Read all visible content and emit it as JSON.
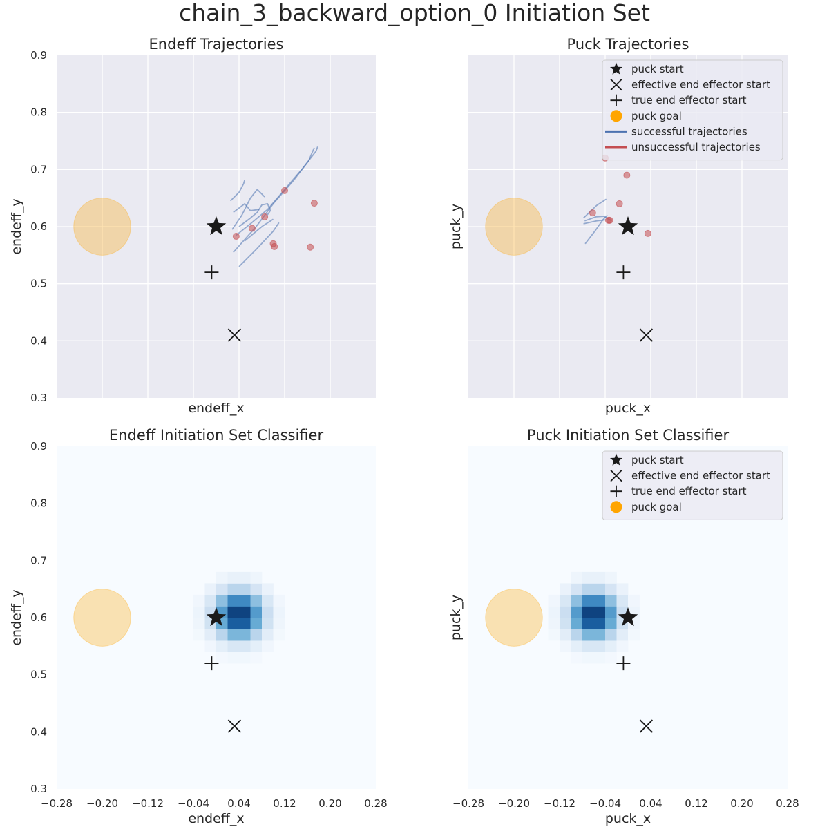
{
  "suptitle": "chain_3_backward_option_0 Initiation Set",
  "colors": {
    "panel_bg": "#eaeaf2",
    "grid": "#ffffff",
    "goal": "#ffa500",
    "success": "#4c72b0",
    "failure": "#c44e52",
    "marker": "#1a1a1a",
    "heat_low": "#f7fbff",
    "heat_high": "#08306b"
  },
  "legend_labels": {
    "puck_start": "puck start",
    "eff_start": "effective end effector start",
    "true_start": "true end effector start",
    "goal": "puck goal",
    "success": "successful trajectories",
    "failure": "unsuccessful trajectories"
  },
  "icons": {
    "puck_start": "star-marker",
    "eff_start": "x-marker",
    "true_start": "plus-marker",
    "goal": "filled-circle"
  },
  "panels": [
    {
      "title": "Endeff Trajectories",
      "xlabel": "endeff_x",
      "ylabel": "endeff_y"
    },
    {
      "title": "Puck Trajectories",
      "xlabel": "puck_x",
      "ylabel": "puck_y"
    },
    {
      "title": "Endeff Initiation Set Classifier",
      "xlabel": "endeff_x",
      "ylabel": "endeff_y"
    },
    {
      "title": "Puck Initiation Set Classifier",
      "xlabel": "puck_x",
      "ylabel": "puck_y"
    }
  ],
  "chart_data": [
    {
      "type": "line",
      "title": "Endeff Trajectories",
      "xlabel": "endeff_x",
      "ylabel": "endeff_y",
      "xlim": [
        -0.28,
        0.28
      ],
      "ylim": [
        0.3,
        0.9
      ],
      "xticks": [],
      "yticks": [
        "0.3",
        "0.4",
        "0.5",
        "0.6",
        "0.7",
        "0.8",
        "0.9"
      ],
      "grid": true,
      "puck_start": [
        0.0,
        0.6
      ],
      "effective_end_effector_start": [
        0.032,
        0.41
      ],
      "true_end_effector_start": [
        -0.008,
        0.52
      ],
      "puck_goal": {
        "center": [
          -0.2,
          0.6
        ],
        "radius": 0.05
      },
      "successful_trajectories": [
        [
          [
            0.025,
            0.645
          ],
          [
            0.04,
            0.66
          ],
          [
            0.048,
            0.675
          ],
          [
            0.05,
            0.682
          ]
        ],
        [
          [
            0.028,
            0.595
          ],
          [
            0.045,
            0.62
          ],
          [
            0.06,
            0.65
          ],
          [
            0.072,
            0.665
          ],
          [
            0.085,
            0.652
          ]
        ],
        [
          [
            0.03,
            0.625
          ],
          [
            0.05,
            0.64
          ],
          [
            0.06,
            0.628
          ],
          [
            0.075,
            0.63
          ]
        ],
        [
          [
            0.04,
            0.6
          ],
          [
            0.06,
            0.615
          ],
          [
            0.072,
            0.625
          ],
          [
            0.08,
            0.638
          ],
          [
            0.09,
            0.64
          ],
          [
            0.095,
            0.628
          ],
          [
            0.088,
            0.618
          ]
        ],
        [
          [
            0.035,
            0.585
          ],
          [
            0.06,
            0.605
          ],
          [
            0.09,
            0.63
          ],
          [
            0.12,
            0.665
          ],
          [
            0.15,
            0.7
          ],
          [
            0.175,
            0.732
          ],
          [
            0.178,
            0.74
          ]
        ],
        [
          [
            0.03,
            0.555
          ],
          [
            0.07,
            0.6
          ],
          [
            0.1,
            0.64
          ],
          [
            0.135,
            0.68
          ],
          [
            0.162,
            0.715
          ],
          [
            0.172,
            0.738
          ]
        ],
        [
          [
            0.04,
            0.53
          ],
          [
            0.07,
            0.56
          ],
          [
            0.1,
            0.592
          ],
          [
            0.11,
            0.607
          ]
        ],
        [
          [
            0.05,
            0.575
          ],
          [
            0.08,
            0.6
          ],
          [
            0.1,
            0.613
          ]
        ]
      ],
      "unsuccessful_end_points": [
        [
          0.035,
          0.583
        ],
        [
          0.063,
          0.597
        ],
        [
          0.085,
          0.617
        ],
        [
          0.1,
          0.57
        ],
        [
          0.102,
          0.565
        ],
        [
          0.12,
          0.663
        ],
        [
          0.172,
          0.641
        ],
        [
          0.165,
          0.564
        ]
      ]
    },
    {
      "type": "line",
      "title": "Puck Trajectories",
      "xlabel": "puck_x",
      "ylabel": "puck_y",
      "xlim": [
        -0.28,
        0.28
      ],
      "ylim": [
        0.3,
        0.9
      ],
      "xticks": [],
      "yticks": [],
      "grid": true,
      "legend": "top-right",
      "puck_start": [
        0.0,
        0.6
      ],
      "effective_end_effector_start": [
        0.032,
        0.41
      ],
      "true_end_effector_start": [
        -0.008,
        0.52
      ],
      "puck_goal": {
        "center": [
          -0.2,
          0.6
        ],
        "radius": 0.05
      },
      "successful_trajectories": [
        [
          [
            -0.078,
            0.615
          ],
          [
            -0.055,
            0.637
          ],
          [
            -0.038,
            0.648
          ]
        ],
        [
          [
            -0.076,
            0.61
          ],
          [
            -0.056,
            0.617
          ],
          [
            -0.042,
            0.618
          ],
          [
            -0.032,
            0.612
          ],
          [
            -0.03,
            0.611
          ]
        ],
        [
          [
            -0.078,
            0.605
          ],
          [
            -0.055,
            0.61
          ],
          [
            -0.038,
            0.612
          ]
        ],
        [
          [
            -0.075,
            0.57
          ],
          [
            -0.058,
            0.592
          ],
          [
            -0.044,
            0.612
          ],
          [
            -0.036,
            0.62
          ]
        ]
      ],
      "unsuccessful_end_points": [
        [
          -0.062,
          0.624
        ],
        [
          -0.034,
          0.611
        ],
        [
          -0.032,
          0.611
        ],
        [
          -0.04,
          0.72
        ],
        [
          -0.002,
          0.69
        ],
        [
          -0.015,
          0.64
        ],
        [
          0.035,
          0.588
        ]
      ]
    },
    {
      "type": "heatmap",
      "title": "Endeff Initiation Set Classifier",
      "xlabel": "endeff_x",
      "ylabel": "endeff_y",
      "xlim": [
        -0.28,
        0.28
      ],
      "ylim": [
        0.3,
        0.9
      ],
      "xticks": [
        "−0.28",
        "−0.20",
        "−0.12",
        "−0.04",
        "0.04",
        "0.12",
        "0.20",
        "0.28"
      ],
      "yticks": [
        "0.3",
        "0.4",
        "0.5",
        "0.6",
        "0.7",
        "0.8",
        "0.9"
      ],
      "grid": false,
      "classifier_center": [
        0.04,
        0.605
      ],
      "classifier_spread": 0.044,
      "puck_start": [
        0.0,
        0.6
      ],
      "effective_end_effector_start": [
        0.032,
        0.41
      ],
      "true_end_effector_start": [
        -0.008,
        0.52
      ],
      "puck_goal": {
        "center": [
          -0.2,
          0.6
        ],
        "radius": 0.05
      }
    },
    {
      "type": "heatmap",
      "title": "Puck Initiation Set Classifier",
      "xlabel": "puck_x",
      "ylabel": "puck_y",
      "xlim": [
        -0.28,
        0.28
      ],
      "ylim": [
        0.3,
        0.9
      ],
      "xticks": [
        "−0.28",
        "−0.20",
        "−0.12",
        "−0.04",
        "0.04",
        "0.12",
        "0.20",
        "0.28"
      ],
      "yticks": [],
      "grid": false,
      "legend": "top-right",
      "classifier_center": [
        -0.06,
        0.605
      ],
      "classifier_spread": 0.044,
      "puck_start": [
        0.0,
        0.6
      ],
      "effective_end_effector_start": [
        0.032,
        0.41
      ],
      "true_end_effector_start": [
        -0.008,
        0.52
      ],
      "puck_goal": {
        "center": [
          -0.2,
          0.6
        ],
        "radius": 0.05
      }
    }
  ]
}
